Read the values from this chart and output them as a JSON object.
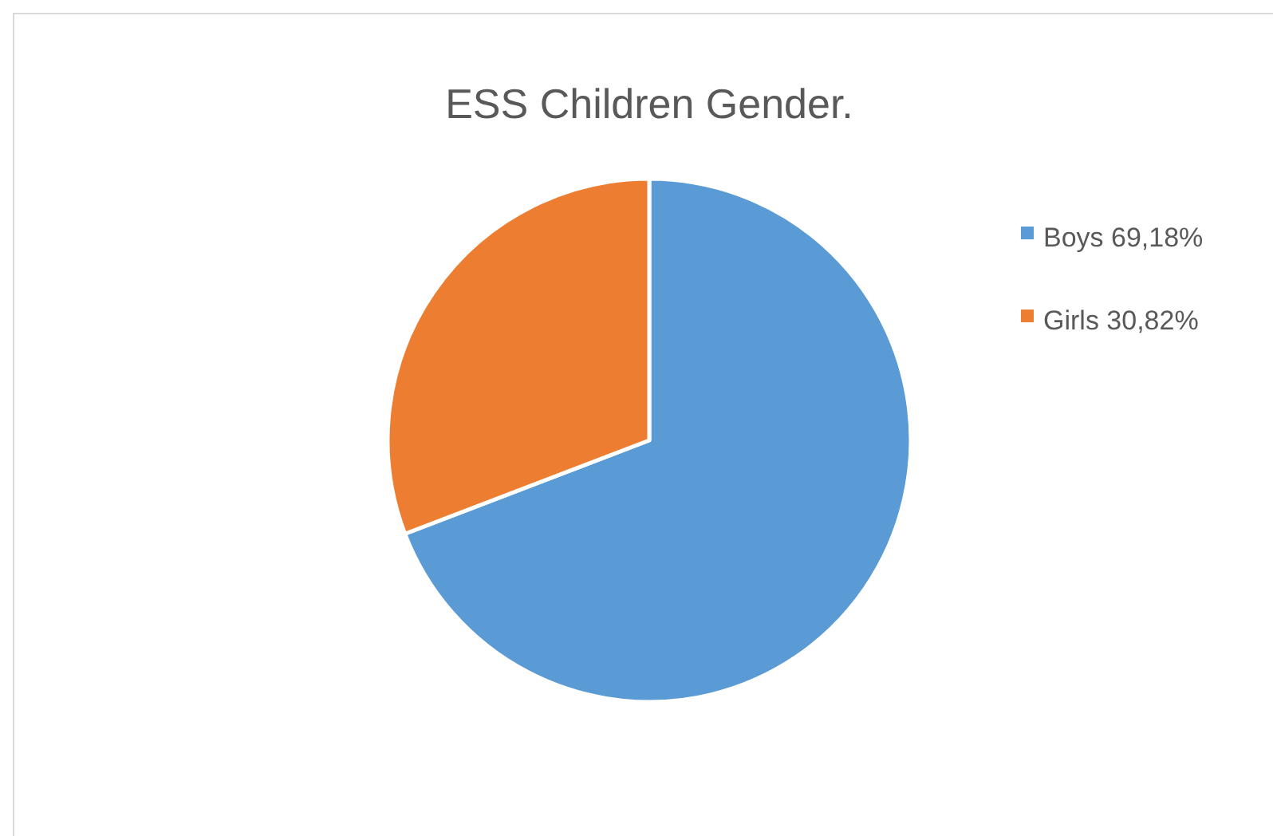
{
  "chart_data": {
    "type": "pie",
    "title": "ESS Children Gender.",
    "categories": [
      "Boys 69,18%",
      "Girls 30,82%"
    ],
    "values": [
      69.18,
      30.82
    ],
    "colors": [
      "#5b9bd5",
      "#ed7d31"
    ],
    "legend": "right"
  }
}
